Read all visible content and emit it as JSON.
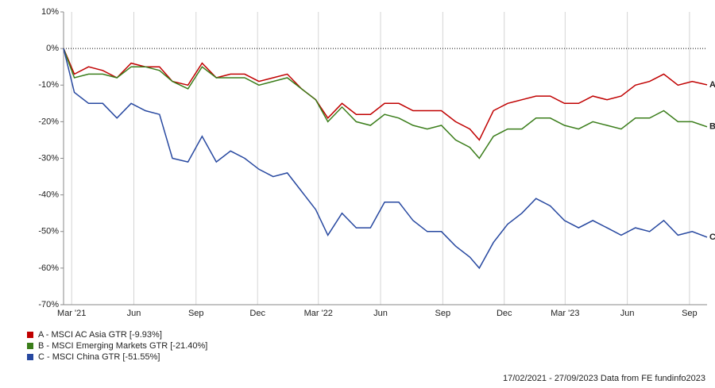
{
  "chart_data": {
    "type": "line",
    "x": [
      "2021-02-17",
      "2021-03-05",
      "2021-03-26",
      "2021-04-16",
      "2021-05-07",
      "2021-05-28",
      "2021-06-18",
      "2021-07-09",
      "2021-07-28",
      "2021-08-20",
      "2021-09-10",
      "2021-10-01",
      "2021-10-22",
      "2021-11-12",
      "2021-12-03",
      "2021-12-24",
      "2022-01-14",
      "2022-02-04",
      "2022-02-25",
      "2022-03-15",
      "2022-04-05",
      "2022-04-26",
      "2022-05-17",
      "2022-06-07",
      "2022-06-28",
      "2022-07-19",
      "2022-08-09",
      "2022-08-30",
      "2022-09-20",
      "2022-10-11",
      "2022-10-25",
      "2022-11-15",
      "2022-12-06",
      "2022-12-27",
      "2023-01-17",
      "2023-02-07",
      "2023-02-28",
      "2023-03-21",
      "2023-04-11",
      "2023-05-02",
      "2023-05-23",
      "2023-06-13",
      "2023-07-04",
      "2023-07-25",
      "2023-08-15",
      "2023-09-05",
      "2023-09-27"
    ],
    "series": [
      {
        "name": "A - MSCI AC Asia GTR [-9.93%]",
        "marker": "A",
        "color": "#c00000",
        "values": [
          0,
          -7,
          -5,
          -6,
          -8,
          -4,
          -5,
          -5,
          -9,
          -10,
          -4,
          -8,
          -7,
          -7,
          -9,
          -8,
          -7,
          -11,
          -14,
          -19,
          -15,
          -18,
          -18,
          -15,
          -15,
          -17,
          -17,
          -17,
          -20,
          -22,
          -25,
          -17,
          -15,
          -14,
          -13,
          -13,
          -15,
          -15,
          -13,
          -14,
          -13,
          -10,
          -9,
          -7,
          -10,
          -9,
          -9.93
        ]
      },
      {
        "name": "B - MSCI Emerging Markets GTR [-21.40%]",
        "marker": "B",
        "color": "#3a7d1a",
        "values": [
          0,
          -8,
          -7,
          -7,
          -8,
          -5,
          -5,
          -6,
          -9,
          -11,
          -5,
          -8,
          -8,
          -8,
          -10,
          -9,
          -8,
          -11,
          -14,
          -20,
          -16,
          -20,
          -21,
          -18,
          -19,
          -21,
          -22,
          -21,
          -25,
          -27,
          -30,
          -24,
          -22,
          -22,
          -19,
          -19,
          -21,
          -22,
          -20,
          -21,
          -22,
          -19,
          -19,
          -17,
          -20,
          -20,
          -21.4
        ]
      },
      {
        "name": "C - MSCI China GTR [-51.55%]",
        "marker": "C",
        "color": "#2748a0",
        "values": [
          0,
          -12,
          -15,
          -15,
          -19,
          -15,
          -17,
          -18,
          -30,
          -31,
          -24,
          -31,
          -28,
          -30,
          -33,
          -35,
          -34,
          -39,
          -44,
          -51,
          -45,
          -49,
          -49,
          -42,
          -42,
          -47,
          -50,
          -50,
          -54,
          -57,
          -60,
          -53,
          -48,
          -45,
          -41,
          -43,
          -47,
          -49,
          -47,
          -49,
          -51,
          -49,
          -50,
          -47,
          -51,
          -50,
          -51.55
        ]
      }
    ],
    "xlim": [
      "2021-02-17",
      "2023-09-27"
    ],
    "xticks": [
      {
        "value": "2021-03-01",
        "label": "Mar '21"
      },
      {
        "value": "2021-06-01",
        "label": "Jun"
      },
      {
        "value": "2021-09-01",
        "label": "Sep"
      },
      {
        "value": "2021-12-01",
        "label": "Dec"
      },
      {
        "value": "2022-03-01",
        "label": "Mar '22"
      },
      {
        "value": "2022-06-01",
        "label": "Jun"
      },
      {
        "value": "2022-09-01",
        "label": "Sep"
      },
      {
        "value": "2022-12-01",
        "label": "Dec"
      },
      {
        "value": "2023-03-01",
        "label": "Mar '23"
      },
      {
        "value": "2023-06-01",
        "label": "Jun"
      },
      {
        "value": "2023-09-01",
        "label": "Sep"
      }
    ],
    "ylim": [
      -70,
      10
    ],
    "yticks": [
      {
        "value": 10,
        "label": "10%"
      },
      {
        "value": 0,
        "label": "0%"
      },
      {
        "value": -10,
        "label": "-10%"
      },
      {
        "value": -20,
        "label": "-20%"
      },
      {
        "value": -30,
        "label": "-30%"
      },
      {
        "value": -40,
        "label": "-40%"
      },
      {
        "value": -50,
        "label": "-50%"
      },
      {
        "value": -60,
        "label": "-60%"
      },
      {
        "value": -70,
        "label": "-70%"
      }
    ],
    "footer": "17/02/2021 - 27/09/2023 Data from FE fundinfo2023"
  }
}
